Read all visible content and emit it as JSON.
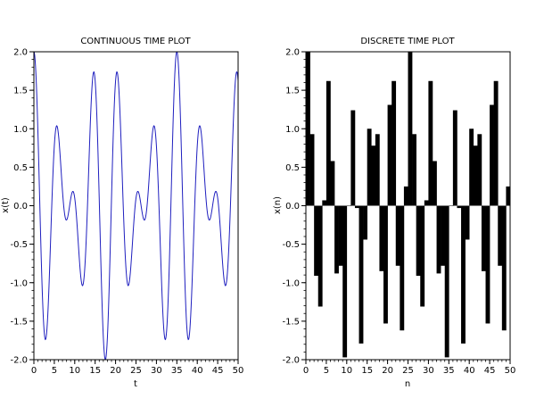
{
  "chart_data": [
    {
      "type": "line",
      "title": "CONTINUOUS TIME PLOT",
      "xlabel": "t",
      "ylabel": "x(t)",
      "xlim": [
        0,
        50
      ],
      "ylim": [
        -2.0,
        2.0
      ],
      "xticks": [
        "0",
        "5",
        "10",
        "15",
        "20",
        "25",
        "30",
        "35",
        "40",
        "45",
        "50"
      ],
      "yticks": [
        "2.0",
        "1.5",
        "1.0",
        "0.5",
        "0.0",
        "-0.5",
        "-1.0",
        "-1.5",
        "-2.0"
      ],
      "line_color": "#1f1fbf",
      "sample_step": 0.1,
      "series": [
        {
          "signal": "x(t) = cos(2π·t/5) + cos(2π·t/7)",
          "x_start": 0,
          "x_end": 50
        }
      ]
    },
    {
      "type": "bar",
      "title": "DISCRETE TIME PLOT",
      "xlabel": "n",
      "ylabel": "x(n)",
      "xlim": [
        0,
        50
      ],
      "ylim": [
        -2.0,
        2.0
      ],
      "xticks": [
        "0",
        "5",
        "10",
        "15",
        "20",
        "25",
        "30",
        "35",
        "40",
        "45",
        "50"
      ],
      "yticks": [
        "2.0",
        "1.5",
        "1.0",
        "0.5",
        "0.0",
        "-0.5",
        "-1.0",
        "-1.5",
        "-2.0"
      ],
      "bar_color": "#000000",
      "x": [
        0,
        1,
        2,
        3,
        4,
        5,
        6,
        7,
        8,
        9,
        10,
        11,
        12,
        13,
        14,
        15,
        16,
        17,
        18,
        19,
        20,
        21,
        22,
        23,
        24,
        25,
        26,
        27,
        28,
        29,
        30,
        31,
        32,
        33,
        34,
        35,
        36,
        37,
        38,
        39,
        40,
        41,
        42,
        43,
        44,
        45,
        46,
        47,
        48,
        49
      ],
      "values": [
        2.0,
        0.93,
        -0.91,
        -1.31,
        0.07,
        1.62,
        0.58,
        -0.88,
        -0.78,
        -1.97,
        0.0,
        1.24,
        -0.03,
        -1.79,
        -0.44,
        1.0,
        0.78,
        0.93,
        -0.85,
        -1.53,
        1.31,
        1.62,
        -0.78,
        -1.62,
        0.25,
        2.0,
        0.93,
        -0.91,
        -1.31,
        0.07,
        1.62,
        0.58,
        -0.88,
        -0.78,
        -1.97,
        0.0,
        1.24,
        -0.03,
        -1.79,
        -0.44,
        1.0,
        0.78,
        0.93,
        -0.85,
        -1.53,
        1.31,
        1.62,
        -0.78,
        -1.62,
        0.25
      ]
    }
  ]
}
